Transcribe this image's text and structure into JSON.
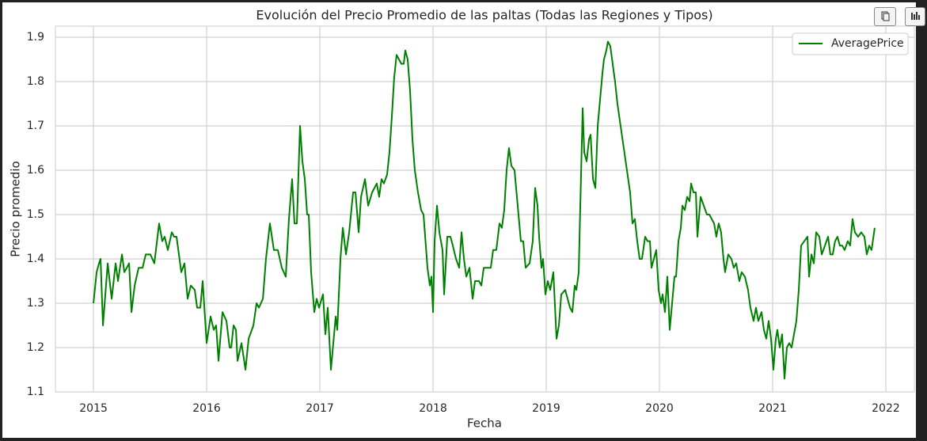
{
  "chart_data": {
    "type": "line",
    "title": "Evolución del Precio Promedio de las paltas (Todas las Regiones y Tipos)",
    "xlabel": "Fecha",
    "ylabel": "Precio promedio",
    "xlim": [
      2014.664,
      2022.252
    ],
    "ylim": [
      1.1,
      1.925
    ],
    "xticks": [
      2015,
      2016,
      2017,
      2018,
      2019,
      2020,
      2021,
      2022
    ],
    "yticks": [
      1.1,
      1.2,
      1.3,
      1.4,
      1.5,
      1.6,
      1.7,
      1.8,
      1.9
    ],
    "grid": true,
    "legend": "upper right",
    "series": [
      {
        "name": "AveragePrice",
        "color": "#008000",
        "x": [
          2015.0,
          2015.028,
          2015.049,
          2015.063,
          2015.084,
          2015.105,
          2015.126,
          2015.161,
          2015.196,
          2015.217,
          2015.252,
          2015.273,
          2015.315,
          2015.336,
          2015.364,
          2015.399,
          2015.434,
          2015.462,
          2015.503,
          2015.538,
          2015.58,
          2015.608,
          2015.629,
          2015.657,
          2015.692,
          2015.713,
          2015.734,
          2015.776,
          2015.804,
          2015.832,
          2015.86,
          2015.895,
          2015.916,
          2015.944,
          2015.965,
          2016.0,
          2016.035,
          2016.063,
          2016.084,
          2016.105,
          2016.14,
          2016.175,
          2016.203,
          2016.217,
          2016.238,
          2016.259,
          2016.273,
          2016.308,
          2016.343,
          2016.371,
          2016.413,
          2016.441,
          2016.462,
          2016.497,
          2016.524,
          2016.559,
          2016.594,
          2016.629,
          2016.664,
          2016.699,
          2016.727,
          2016.755,
          2016.776,
          2016.797,
          2016.825,
          2016.846,
          2016.867,
          2016.888,
          2016.902,
          2016.923,
          2016.951,
          2016.972,
          2016.993,
          2017.028,
          2017.049,
          2017.07,
          2017.098,
          2017.14,
          2017.154,
          2017.182,
          2017.203,
          2017.231,
          2017.259,
          2017.294,
          2017.315,
          2017.343,
          2017.364,
          2017.399,
          2017.427,
          2017.462,
          2017.503,
          2017.524,
          2017.545,
          2017.566,
          2017.594,
          2017.615,
          2017.636,
          2017.657,
          2017.678,
          2017.699,
          2017.72,
          2017.741,
          2017.755,
          2017.776,
          2017.797,
          2017.818,
          2017.839,
          2017.867,
          2017.895,
          2017.916,
          2017.951,
          2017.972,
          2017.986,
          2018.0,
          2018.014,
          2018.035,
          2018.056,
          2018.084,
          2018.098,
          2018.126,
          2018.154,
          2018.175,
          2018.203,
          2018.231,
          2018.252,
          2018.273,
          2018.294,
          2018.322,
          2018.35,
          2018.371,
          2018.406,
          2018.427,
          2018.448,
          2018.483,
          2018.51,
          2018.531,
          2018.559,
          2018.587,
          2018.608,
          2018.629,
          2018.65,
          2018.671,
          2018.692,
          2018.72,
          2018.748,
          2018.776,
          2018.797,
          2018.818,
          2018.853,
          2018.881,
          2018.902,
          2018.923,
          2018.937,
          2018.958,
          2018.972,
          2018.993,
          2019.014,
          2019.035,
          2019.063,
          2019.091,
          2019.112,
          2019.133,
          2019.168,
          2019.189,
          2019.21,
          2019.231,
          2019.252,
          2019.266,
          2019.287,
          2019.301,
          2019.322,
          2019.336,
          2019.357,
          2019.378,
          2019.392,
          2019.413,
          2019.434,
          2019.455,
          2019.476,
          2019.497,
          2019.51,
          2019.531,
          2019.545,
          2019.566,
          2019.587,
          2019.608,
          2019.629,
          2019.657,
          2019.685,
          2019.713,
          2019.741,
          2019.762,
          2019.783,
          2019.804,
          2019.825,
          2019.846,
          2019.874,
          2019.895,
          2019.916,
          2019.93,
          2019.951,
          2019.972,
          2019.993,
          2020.014,
          2020.028,
          2020.049,
          2020.07,
          2020.091,
          2020.112,
          2020.133,
          2020.147,
          2020.168,
          2020.189,
          2020.203,
          2020.224,
          2020.245,
          2020.266,
          2020.28,
          2020.301,
          2020.322,
          2020.336,
          2020.364,
          2020.392,
          2020.42,
          2020.441,
          2020.462,
          2020.483,
          2020.503,
          2020.524,
          2020.545,
          2020.566,
          2020.58,
          2020.608,
          2020.636,
          2020.657,
          2020.678,
          2020.706,
          2020.727,
          2020.755,
          2020.783,
          2020.804,
          2020.832,
          2020.853,
          2020.874,
          2020.902,
          2020.923,
          2020.944,
          2020.965,
          2020.986,
          2021.007,
          2021.028,
          2021.042,
          2021.063,
          2021.084,
          2021.105,
          2021.126,
          2021.147,
          2021.168,
          2021.189,
          2021.21,
          2021.231,
          2021.252,
          2021.28,
          2021.308,
          2021.322,
          2021.343,
          2021.364,
          2021.385,
          2021.413,
          2021.434,
          2021.462,
          2021.49,
          2021.51,
          2021.531,
          2021.552,
          2021.573,
          2021.594,
          2021.615,
          2021.636,
          2021.664,
          2021.685,
          2021.706,
          2021.727,
          2021.755,
          2021.783,
          2021.811,
          2021.832,
          2021.853,
          2021.874,
          2021.902
        ],
        "values": [
          1.3,
          1.37,
          1.39,
          1.4,
          1.25,
          1.32,
          1.39,
          1.31,
          1.39,
          1.35,
          1.41,
          1.37,
          1.39,
          1.28,
          1.34,
          1.38,
          1.38,
          1.41,
          1.41,
          1.39,
          1.48,
          1.44,
          1.45,
          1.42,
          1.46,
          1.45,
          1.45,
          1.37,
          1.39,
          1.31,
          1.34,
          1.33,
          1.29,
          1.29,
          1.35,
          1.21,
          1.27,
          1.24,
          1.25,
          1.17,
          1.28,
          1.26,
          1.2,
          1.2,
          1.25,
          1.24,
          1.17,
          1.21,
          1.15,
          1.22,
          1.25,
          1.3,
          1.29,
          1.31,
          1.4,
          1.48,
          1.42,
          1.42,
          1.38,
          1.36,
          1.49,
          1.58,
          1.48,
          1.48,
          1.7,
          1.62,
          1.58,
          1.5,
          1.5,
          1.37,
          1.28,
          1.31,
          1.29,
          1.32,
          1.23,
          1.29,
          1.15,
          1.27,
          1.24,
          1.4,
          1.47,
          1.41,
          1.46,
          1.55,
          1.55,
          1.46,
          1.54,
          1.58,
          1.52,
          1.55,
          1.57,
          1.54,
          1.58,
          1.57,
          1.59,
          1.64,
          1.72,
          1.81,
          1.86,
          1.85,
          1.84,
          1.84,
          1.87,
          1.85,
          1.78,
          1.67,
          1.6,
          1.55,
          1.51,
          1.5,
          1.38,
          1.34,
          1.36,
          1.28,
          1.44,
          1.52,
          1.46,
          1.42,
          1.32,
          1.45,
          1.45,
          1.43,
          1.4,
          1.38,
          1.46,
          1.4,
          1.36,
          1.38,
          1.31,
          1.35,
          1.35,
          1.34,
          1.38,
          1.38,
          1.38,
          1.42,
          1.42,
          1.48,
          1.47,
          1.51,
          1.6,
          1.65,
          1.61,
          1.6,
          1.52,
          1.44,
          1.44,
          1.38,
          1.39,
          1.44,
          1.56,
          1.52,
          1.45,
          1.38,
          1.4,
          1.32,
          1.35,
          1.33,
          1.37,
          1.22,
          1.25,
          1.32,
          1.33,
          1.31,
          1.29,
          1.28,
          1.34,
          1.33,
          1.37,
          1.52,
          1.74,
          1.64,
          1.62,
          1.67,
          1.68,
          1.58,
          1.56,
          1.7,
          1.76,
          1.82,
          1.85,
          1.87,
          1.89,
          1.88,
          1.84,
          1.8,
          1.75,
          1.7,
          1.65,
          1.6,
          1.55,
          1.48,
          1.49,
          1.44,
          1.4,
          1.4,
          1.45,
          1.44,
          1.44,
          1.38,
          1.4,
          1.42,
          1.33,
          1.3,
          1.32,
          1.28,
          1.36,
          1.24,
          1.3,
          1.36,
          1.36,
          1.44,
          1.47,
          1.52,
          1.51,
          1.54,
          1.53,
          1.57,
          1.55,
          1.55,
          1.45,
          1.54,
          1.52,
          1.5,
          1.5,
          1.49,
          1.48,
          1.45,
          1.48,
          1.46,
          1.4,
          1.37,
          1.41,
          1.4,
          1.38,
          1.39,
          1.35,
          1.37,
          1.36,
          1.33,
          1.29,
          1.26,
          1.29,
          1.26,
          1.28,
          1.24,
          1.22,
          1.26,
          1.22,
          1.15,
          1.22,
          1.24,
          1.2,
          1.23,
          1.13,
          1.2,
          1.21,
          1.2,
          1.23,
          1.26,
          1.33,
          1.43,
          1.44,
          1.45,
          1.36,
          1.41,
          1.39,
          1.46,
          1.45,
          1.41,
          1.43,
          1.45,
          1.41,
          1.41,
          1.44,
          1.45,
          1.43,
          1.43,
          1.42,
          1.44,
          1.43,
          1.49,
          1.46,
          1.45,
          1.46,
          1.45,
          1.41,
          1.43,
          1.42,
          1.47
        ]
      }
    ]
  }
}
